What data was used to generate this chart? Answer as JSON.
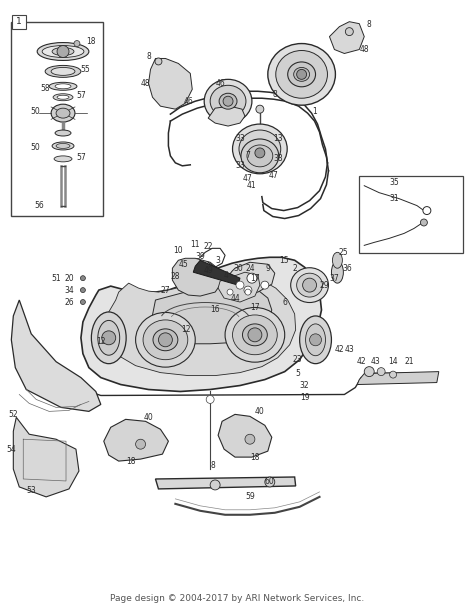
{
  "bg_color": "#ffffff",
  "footer_text": "Page design © 2004-2017 by ARI Network Services, Inc.",
  "footer_fontsize": 6.5,
  "footer_color": "#555555",
  "line_color": "#2a2a2a",
  "label_color": "#2a2a2a",
  "fig_width": 4.74,
  "fig_height": 6.13,
  "dpi": 100
}
